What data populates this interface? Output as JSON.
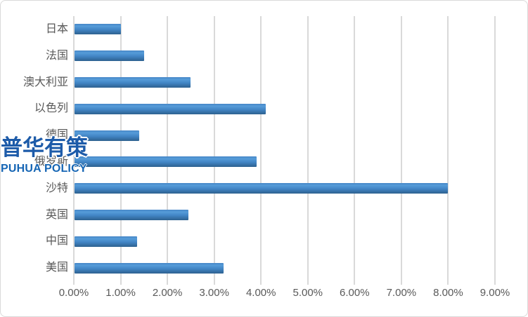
{
  "watermark": {
    "cn": "普华有策",
    "en": "PUHUA POLICY",
    "cn_color": "#1d5ba9",
    "en_color": "#1565b4"
  },
  "colors": {
    "bar_edge": "#4586c6",
    "bar_light": "#569cd9",
    "bar_mid": "#4285c5",
    "bar_dark": "#2d618f",
    "gridline": "#d9d9d9",
    "border": "#d9d9d9",
    "label_text": "#595959"
  },
  "chart_data": {
    "type": "bar",
    "orientation": "horizontal",
    "title": "",
    "xlabel": "",
    "ylabel": "",
    "categories": [
      "日本",
      "法国",
      "澳大利亚",
      "以色列",
      "德国",
      "俄罗斯",
      "沙特",
      "英国",
      "中国",
      "美国"
    ],
    "values": [
      1.0,
      1.5,
      2.5,
      4.1,
      1.4,
      3.9,
      8.0,
      2.45,
      1.35,
      3.2
    ],
    "value_unit": "%",
    "xlim": [
      0,
      9
    ],
    "x_ticks": [
      "0.00%",
      "1.00%",
      "2.00%",
      "3.00%",
      "4.00%",
      "5.00%",
      "6.00%",
      "7.00%",
      "8.00%",
      "9.00%"
    ],
    "grid": true,
    "legend": false
  }
}
